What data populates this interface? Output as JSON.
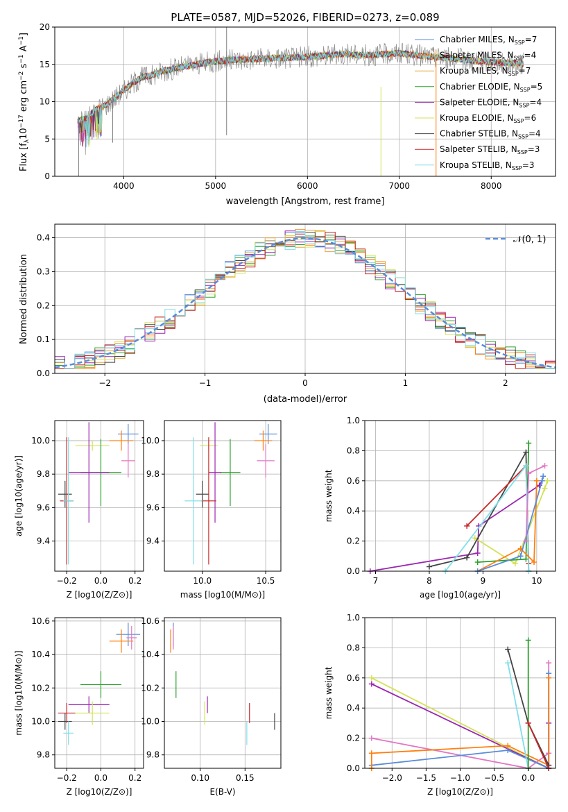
{
  "colors": {
    "s0": "#5b8bd9",
    "s1": "#ff7f0e",
    "s2": "#e8a53c",
    "s3": "#2ca02c",
    "s4": "#9b27b0",
    "s5": "#d4e157",
    "s6": "#444444",
    "s7": "#c62828",
    "s8": "#80deea",
    "gray": "#808080",
    "pink": "#e377c2",
    "normal": "#5b8bd9"
  },
  "series": [
    {
      "name": "Chabrier MILES, N<sub>SSP</sub>=7",
      "label": "Chabrier MILES, NSSP=7",
      "color_key": "s0"
    },
    {
      "name": "Salpeter MILES, NSSP=4",
      "label": "Salpeter MILES, NSSP=4",
      "color_key": "s1"
    },
    {
      "name": "Kroupa MILES, NSSP=7",
      "label": "Kroupa MILES, NSSP=7",
      "color_key": "s2"
    },
    {
      "name": "Chabrier ELODIE, NSSP=5",
      "label": "Chabrier ELODIE, NSSP=5",
      "color_key": "s3"
    },
    {
      "name": "Salpeter ELODIE, NSSP=4",
      "label": "Salpeter ELODIE, NSSP=4",
      "color_key": "s4"
    },
    {
      "name": "Kroupa ELODIE, NSSP=6",
      "label": "Kroupa ELODIE, NSSP=6",
      "color_key": "s5"
    },
    {
      "name": "Chabrier STELIB, NSSP=4",
      "label": "Chabrier STELIB, NSSP=4",
      "color_key": "s6"
    },
    {
      "name": "Salpeter STELIB, NSSP=3",
      "label": "Salpeter STELIB, NSSP=3",
      "color_key": "s7"
    },
    {
      "name": "Kroupa STELIB, NSSP=3",
      "label": "Kroupa STELIB, NSSP=3",
      "color_key": "s8"
    }
  ],
  "chart_data": [
    {
      "type": "line",
      "title": "PLATE=0587, MJD=52026, FIBERID=0273, z=0.089",
      "xlabel": "wavelength [Angstrom, rest frame]",
      "ylabel": "Flux [fλ10⁻¹⁷ erg cm⁻² s⁻¹ A⁻¹]",
      "xlim": [
        3250,
        8700
      ],
      "ylim": [
        0,
        20
      ],
      "xticks": [
        4000,
        5000,
        6000,
        7000,
        8000
      ],
      "yticks": [
        0,
        5,
        10,
        15,
        20
      ],
      "spectrum_continuum": {
        "x": [
          3500,
          3600,
          3700,
          3800,
          3900,
          4000,
          4100,
          4200,
          4300,
          4400,
          4500,
          4600,
          4800,
          5000,
          5200,
          5400,
          5600,
          5800,
          6000,
          6200,
          6400,
          6600,
          6800,
          7000,
          7200,
          7400,
          7600,
          7800,
          8000,
          8200,
          8350
        ],
        "y": [
          7.5,
          7.8,
          9.0,
          9.5,
          10.5,
          11.5,
          12.5,
          13.3,
          13.5,
          14.0,
          14.3,
          14.6,
          15.0,
          15.4,
          15.6,
          15.7,
          15.8,
          15.9,
          16.0,
          16.2,
          16.4,
          16.2,
          16.3,
          16.5,
          16.2,
          16.0,
          15.8,
          15.5,
          15.3,
          15.2,
          15.1
        ]
      },
      "legend": "upper right"
    },
    {
      "type": "bar",
      "title": "",
      "xlabel": "(data-model)/error",
      "ylabel": "Normed distribution",
      "xlim": [
        -2.5,
        2.5
      ],
      "ylim": [
        0,
        0.44
      ],
      "xticks": [
        -2,
        -1,
        0,
        1,
        2
      ],
      "yticks": [
        0.0,
        0.1,
        0.2,
        0.3,
        0.4
      ],
      "bin_width": 0.1,
      "normal_curve": {
        "label": "𝒩(0, 1)",
        "mu": 0,
        "sigma": 1
      },
      "legend": "upper right"
    },
    {
      "type": "scatter",
      "xlabel": "Z [log10(Z/Z⊙)]",
      "ylabel": "age [log10(age/yr)]",
      "xlim": [
        -0.27,
        0.25
      ],
      "ylim": [
        9.22,
        10.12
      ],
      "xticks": [
        -0.2,
        0.0,
        0.2
      ],
      "yticks": [
        9.4,
        9.6,
        9.8,
        10.0
      ],
      "points": [
        {
          "s": "s0",
          "x": 0.16,
          "xerr": 0.06,
          "y": 10.04,
          "yerr": 0.06
        },
        {
          "s": "s1",
          "x": 0.12,
          "xerr": 0.07,
          "y": 10.0,
          "yerr": 0.06
        },
        {
          "s": "pink",
          "x": 0.16,
          "xerr": 0.04,
          "y": 9.88,
          "yerr": 0.1
        },
        {
          "s": "s5",
          "x": -0.05,
          "xerr": 0.1,
          "y": 9.97,
          "yerr": 0.03
        },
        {
          "s": "s3",
          "x": 0.0,
          "xerr": 0.12,
          "y": 9.81,
          "yerr": 0.2
        },
        {
          "s": "s4",
          "x": -0.07,
          "xerr": 0.12,
          "y": 9.81,
          "yerr": 0.3
        },
        {
          "s": "s6",
          "x": -0.21,
          "xerr": 0.04,
          "y": 9.68,
          "yerr": 0.08
        },
        {
          "s": "s7",
          "x": -0.2,
          "xerr": 0.04,
          "y": 9.64,
          "yerr": 0.38
        },
        {
          "s": "s8",
          "x": -0.19,
          "xerr": 0.03,
          "y": 9.64,
          "yerr": 0.38
        }
      ]
    },
    {
      "type": "scatter",
      "xlabel": "mass [log10(M/M⊙)]",
      "ylabel": "",
      "xlim": [
        9.7,
        10.62
      ],
      "ylim": [
        9.22,
        10.12
      ],
      "xticks": [
        10.0,
        10.5
      ],
      "yticks": [
        9.4,
        9.6,
        9.8,
        10.0
      ],
      "points": [
        {
          "s": "s0",
          "x": 10.52,
          "xerr": 0.07,
          "y": 10.04,
          "yerr": 0.06
        },
        {
          "s": "s1",
          "x": 10.48,
          "xerr": 0.07,
          "y": 10.0,
          "yerr": 0.06
        },
        {
          "s": "pink",
          "x": 10.5,
          "xerr": 0.07,
          "y": 9.88,
          "yerr": 0.1
        },
        {
          "s": "s5",
          "x": 10.05,
          "xerr": 0.07,
          "y": 9.97,
          "yerr": 0.03
        },
        {
          "s": "s3",
          "x": 10.22,
          "xerr": 0.08,
          "y": 9.81,
          "yerr": 0.2
        },
        {
          "s": "s4",
          "x": 10.1,
          "xerr": 0.05,
          "y": 9.81,
          "yerr": 0.3
        },
        {
          "s": "s6",
          "x": 10.0,
          "xerr": 0.05,
          "y": 9.68,
          "yerr": 0.08
        },
        {
          "s": "s7",
          "x": 10.05,
          "xerr": 0.06,
          "y": 9.64,
          "yerr": 0.38
        },
        {
          "s": "s8",
          "x": 9.93,
          "xerr": 0.07,
          "y": 9.64,
          "yerr": 0.38
        }
      ]
    },
    {
      "type": "line",
      "xlabel": "age [log10(age/yr)]",
      "ylabel": "mass weight",
      "xlim": [
        6.8,
        10.35
      ],
      "ylim": [
        0,
        1.0
      ],
      "xticks": [
        7,
        8,
        9,
        10
      ],
      "yticks": [
        0.0,
        0.2,
        0.4,
        0.6,
        0.8,
        1.0
      ],
      "series": [
        {
          "s": "s4",
          "x": [
            6.9,
            8.9,
            8.92,
            10.05,
            10.1
          ],
          "y": [
            0.0,
            0.12,
            0.3,
            0.57,
            0.6
          ]
        },
        {
          "s": "s5",
          "x": [
            8.85,
            9.6,
            10.15,
            10.2
          ],
          "y": [
            0.22,
            0.05,
            0.55,
            0.6
          ]
        },
        {
          "s": "s3",
          "x": [
            8.9,
            9.8,
            9.85
          ],
          "y": [
            0.06,
            0.08,
            0.85
          ]
        },
        {
          "s": "s6",
          "x": [
            8.0,
            8.7,
            9.8,
            9.85
          ],
          "y": [
            0.03,
            0.09,
            0.79,
            0.0
          ]
        },
        {
          "s": "s7",
          "x": [
            8.7,
            9.8,
            9.85
          ],
          "y": [
            0.3,
            0.7,
            0.05
          ]
        },
        {
          "s": "s8",
          "x": [
            8.3,
            9.8,
            9.85
          ],
          "y": [
            0.0,
            0.7,
            0.0
          ]
        },
        {
          "s": "s1",
          "x": [
            8.9,
            9.7,
            9.95,
            10.0
          ],
          "y": [
            0.0,
            0.15,
            0.06,
            0.6
          ]
        },
        {
          "s": "s0",
          "x": [
            8.9,
            9.7,
            10.1,
            10.12
          ],
          "y": [
            0.0,
            0.1,
            0.6,
            0.63
          ]
        },
        {
          "s": "pink",
          "x": [
            9.8,
            9.85,
            10.15
          ],
          "y": [
            0.2,
            0.65,
            0.7
          ]
        }
      ]
    },
    {
      "type": "scatter",
      "xlabel": "Z [log10(Z/Z⊙)]",
      "ylabel": "mass [log10(M/M⊙)]",
      "xlim": [
        -0.27,
        0.25
      ],
      "ylim": [
        9.72,
        10.62
      ],
      "xticks": [
        -0.2,
        0.0,
        0.2
      ],
      "yticks": [
        9.8,
        10.0,
        10.2,
        10.4,
        10.6
      ],
      "points": [
        {
          "s": "s0",
          "x": 0.16,
          "xerr": 0.07,
          "y": 10.52,
          "yerr": 0.07
        },
        {
          "s": "s1",
          "x": 0.12,
          "xerr": 0.07,
          "y": 10.48,
          "yerr": 0.07
        },
        {
          "s": "pink",
          "x": 0.18,
          "xerr": 0.03,
          "y": 10.5,
          "yerr": 0.07
        },
        {
          "s": "s3",
          "x": 0.0,
          "xerr": 0.12,
          "y": 10.22,
          "yerr": 0.08
        },
        {
          "s": "s4",
          "x": -0.07,
          "xerr": 0.12,
          "y": 10.1,
          "yerr": 0.05
        },
        {
          "s": "s5",
          "x": -0.05,
          "xerr": 0.1,
          "y": 10.05,
          "yerr": 0.07
        },
        {
          "s": "s6",
          "x": -0.21,
          "xerr": 0.04,
          "y": 10.0,
          "yerr": 0.05
        },
        {
          "s": "s7",
          "x": -0.2,
          "xerr": 0.05,
          "y": 10.05,
          "yerr": 0.06
        },
        {
          "s": "s8",
          "x": -0.19,
          "xerr": 0.03,
          "y": 9.93,
          "yerr": 0.07
        }
      ]
    },
    {
      "type": "scatter",
      "xlabel": "E(B-V)",
      "ylabel": "",
      "xlim": [
        0.06,
        0.19
      ],
      "ylim": [
        9.72,
        10.62
      ],
      "xticks": [
        0.1,
        0.15
      ],
      "yticks": [
        9.8,
        10.0,
        10.2,
        10.4,
        10.6
      ],
      "points": [
        {
          "s": "s0",
          "x": 0.07,
          "y": 10.52,
          "yerr": 0.07
        },
        {
          "s": "s1",
          "x": 0.067,
          "y": 10.48,
          "yerr": 0.07
        },
        {
          "s": "pink",
          "x": 0.07,
          "y": 10.5,
          "yerr": 0.07
        },
        {
          "s": "s3",
          "x": 0.073,
          "y": 10.22,
          "yerr": 0.08
        },
        {
          "s": "s4",
          "x": 0.108,
          "y": 10.1,
          "yerr": 0.05
        },
        {
          "s": "s5",
          "x": 0.105,
          "y": 10.05,
          "yerr": 0.07
        },
        {
          "s": "s6",
          "x": 0.183,
          "y": 10.0,
          "yerr": 0.05
        },
        {
          "s": "s7",
          "x": 0.155,
          "y": 10.05,
          "yerr": 0.06
        },
        {
          "s": "s8",
          "x": 0.152,
          "y": 9.93,
          "yerr": 0.07
        }
      ]
    },
    {
      "type": "line",
      "xlabel": "Z [log10(Z/Z⊙)]",
      "ylabel": "mass weight",
      "xlim": [
        -2.4,
        0.4
      ],
      "ylim": [
        0,
        1.0
      ],
      "xticks": [
        -2.0,
        -1.5,
        -1.0,
        -0.5,
        0.0
      ],
      "yticks": [
        0.0,
        0.2,
        0.4,
        0.6,
        0.8,
        1.0
      ],
      "series": [
        {
          "s": "s5",
          "x": [
            -2.3,
            0.3
          ],
          "y": [
            0.6,
            0.0
          ]
        },
        {
          "s": "s4",
          "x": [
            -2.3,
            0.3,
            0.3
          ],
          "y": [
            0.56,
            0.0,
            0.3
          ]
        },
        {
          "s": "pink",
          "x": [
            -2.3,
            0.0,
            0.3,
            0.3
          ],
          "y": [
            0.2,
            0.0,
            0.1,
            0.7
          ]
        },
        {
          "s": "s0",
          "x": [
            -2.3,
            -0.3,
            0.3,
            0.3
          ],
          "y": [
            0.02,
            0.12,
            0.0,
            0.63
          ]
        },
        {
          "s": "s1",
          "x": [
            -2.3,
            -2.3,
            -0.3,
            0.3,
            0.3
          ],
          "y": [
            0.0,
            0.1,
            0.15,
            0.02,
            0.6
          ]
        },
        {
          "s": "s6",
          "x": [
            -0.3,
            0.0,
            0.3
          ],
          "y": [
            0.79,
            0.3,
            0.02
          ]
        },
        {
          "s": "s8",
          "x": [
            -0.3,
            0.0
          ],
          "y": [
            0.7,
            0.0
          ]
        },
        {
          "s": "s3",
          "x": [
            0.0,
            0.0
          ],
          "y": [
            0.0,
            0.85
          ]
        },
        {
          "s": "s7",
          "x": [
            0.0,
            0.3
          ],
          "y": [
            0.3,
            0.0
          ]
        }
      ]
    }
  ],
  "legend2_label": "𝒩(0, 1)"
}
